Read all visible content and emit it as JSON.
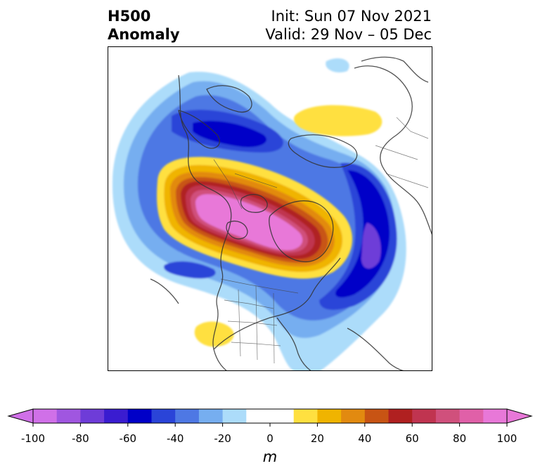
{
  "title": {
    "left_line1": "H500",
    "left_line2": "Anomaly",
    "right_line1": "Init: Sun 07 Nov 2021",
    "right_line2": "Valid: 29 Nov – 05 Dec"
  },
  "colorbar": {
    "units": "m",
    "range": [
      -100,
      100
    ],
    "tick_values": [
      -100,
      -80,
      -60,
      -40,
      -20,
      0,
      20,
      40,
      60,
      80,
      100
    ],
    "tick_labels": [
      "-100",
      "-80",
      "-60",
      "-40",
      "-20",
      "0",
      "20",
      "40",
      "60",
      "80",
      "100"
    ],
    "colors": [
      "#d070e8",
      "#a056e0",
      "#6e3cd8",
      "#3a1cd0",
      "#0000c8",
      "#2a44d8",
      "#4e78e4",
      "#76aef0",
      "#acdcfa",
      "#ffffff",
      "#ffffff",
      "#ffe040",
      "#f0b400",
      "#e28a10",
      "#c85414",
      "#b02020",
      "#c03450",
      "#d0507c",
      "#e060a8",
      "#e878d8"
    ]
  }
}
